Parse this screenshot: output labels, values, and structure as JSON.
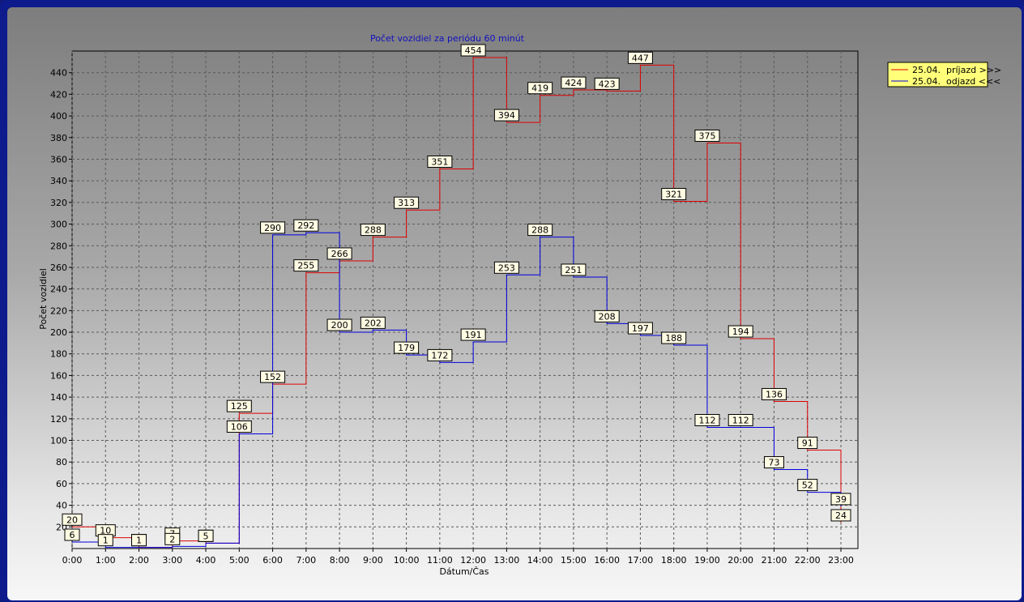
{
  "chart_data": {
    "type": "line",
    "title": "Počet vozidiel za periódu 60 minút",
    "xlabel": "Dátum/Čas",
    "ylabel": "Počet vozidiel",
    "categories": [
      "0:00",
      "1:00",
      "2:00",
      "3:00",
      "4:00",
      "5:00",
      "6:00",
      "7:00",
      "8:00",
      "9:00",
      "10:00",
      "11:00",
      "12:00",
      "13:00",
      "14:00",
      "15:00",
      "16:00",
      "17:00",
      "18:00",
      "19:00",
      "20:00",
      "21:00",
      "22:00",
      "23:00"
    ],
    "y_ticks": [
      "20",
      "40",
      "60",
      "80",
      "100",
      "120",
      "140",
      "160",
      "180",
      "200",
      "220",
      "240",
      "260",
      "280",
      "300",
      "320",
      "340",
      "360",
      "380",
      "400",
      "420",
      "440"
    ],
    "ylim": [
      0,
      460
    ],
    "grid": true,
    "legend_position": "top-right",
    "step": true,
    "series": [
      {
        "name": "25.04.  príjazd >>>",
        "color": "#e00000",
        "values": [
          20,
          10,
          1,
          7,
          5,
          125,
          152,
          255,
          266,
          288,
          313,
          351,
          454,
          394,
          419,
          424,
          423,
          447,
          321,
          375,
          194,
          136,
          91,
          24
        ]
      },
      {
        "name": "25.04.  odjazd <<<",
        "color": "#0000e0",
        "values": [
          6,
          1,
          1,
          2,
          5,
          106,
          290,
          292,
          200,
          202,
          179,
          172,
          191,
          253,
          288,
          251,
          208,
          197,
          188,
          112,
          112,
          73,
          52,
          39
        ]
      }
    ]
  }
}
